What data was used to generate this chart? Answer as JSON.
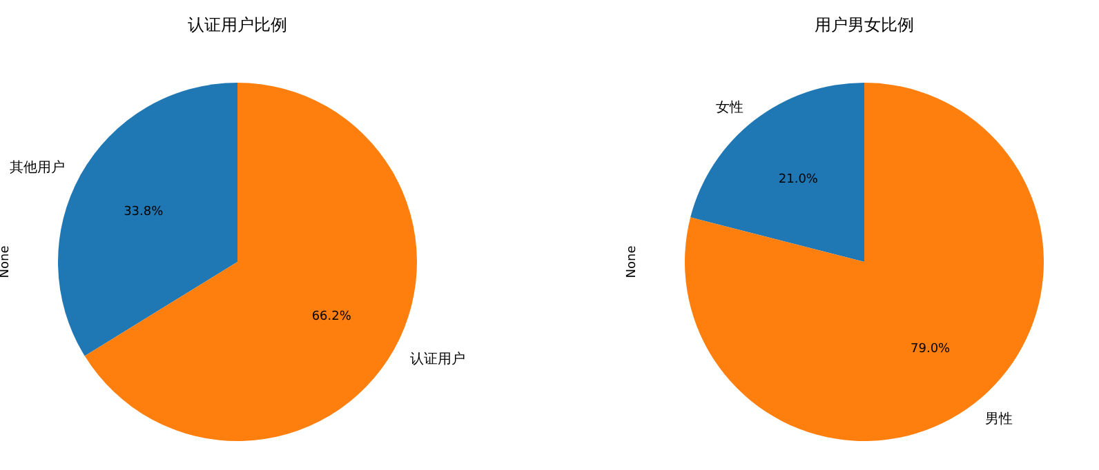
{
  "chart_data": [
    {
      "type": "pie",
      "title": "认证用户比例",
      "ylabel": "None",
      "categories": [
        "其他用户",
        "认证用户"
      ],
      "values": [
        33.8,
        66.2
      ],
      "colors": [
        "#1f77b4",
        "#ff7f0e"
      ],
      "value_labels": [
        "33.8%",
        "66.2%"
      ]
    },
    {
      "type": "pie",
      "title": "用户男女比例",
      "ylabel": "None",
      "categories": [
        "女性",
        "男性"
      ],
      "values": [
        21.0,
        79.0
      ],
      "colors": [
        "#1f77b4",
        "#ff7f0e"
      ],
      "value_labels": [
        "21.0%",
        "79.0%"
      ]
    }
  ]
}
